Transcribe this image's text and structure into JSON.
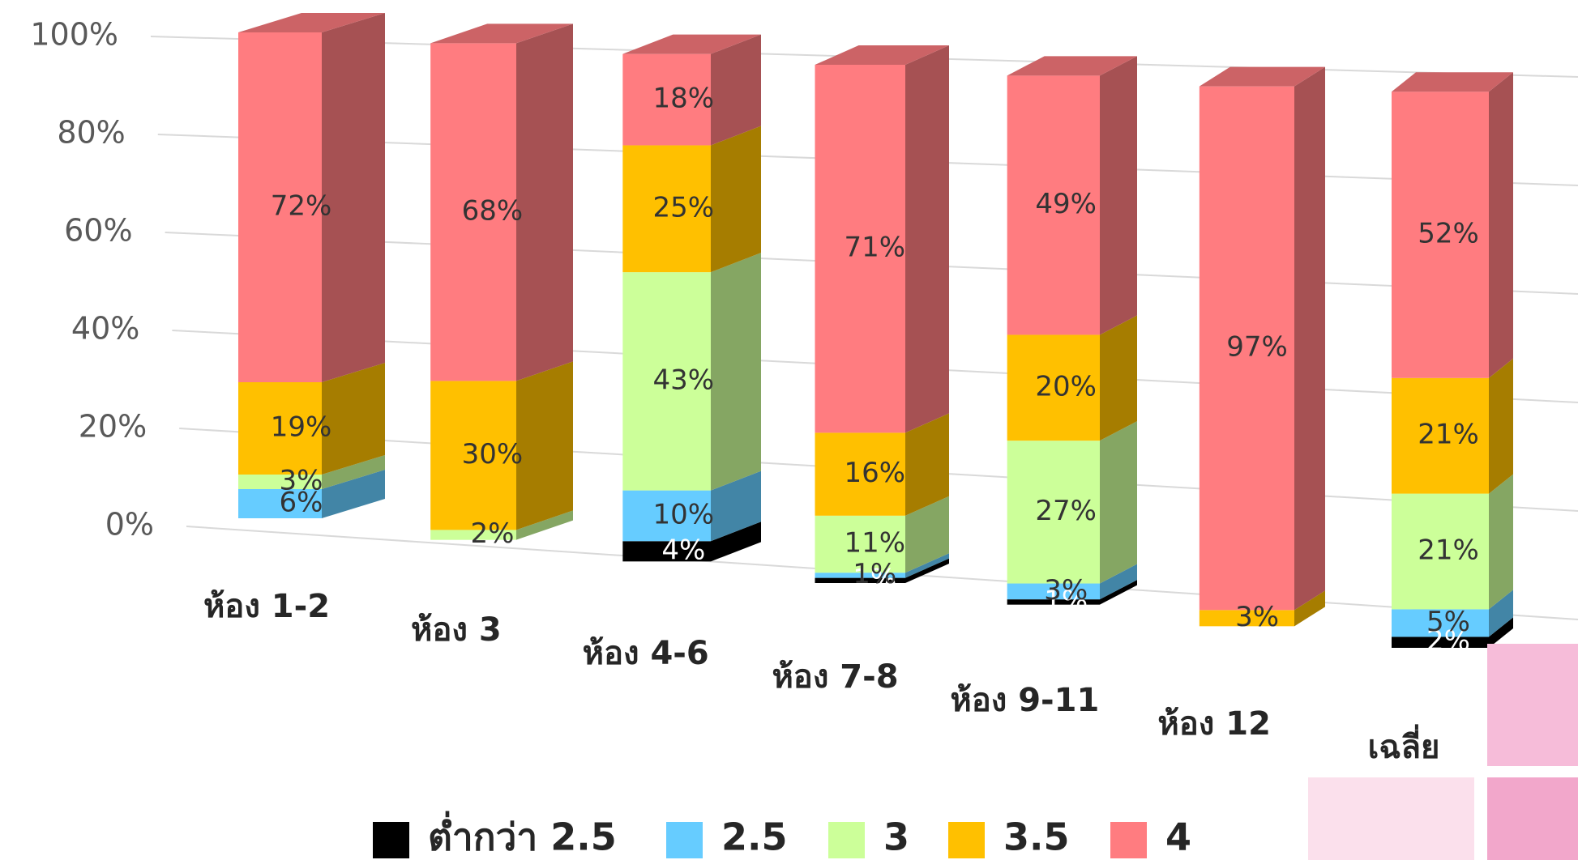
{
  "chart_data": {
    "type": "bar3d_stacked",
    "categories": [
      "ห้อง 1-2",
      "ห้อง 3",
      "ห้อง 4-6",
      "ห้อง 7-8",
      "ห้อง 9-11",
      "ห้อง 12",
      "เฉลี่ย"
    ],
    "series": [
      {
        "name": "ต่ำกว่า 2.5",
        "color": "#000000",
        "values": [
          0,
          0,
          4,
          1,
          1,
          0,
          2
        ],
        "value_labels": [
          null,
          null,
          "4%",
          "1%",
          "1%",
          null,
          "2%"
        ]
      },
      {
        "name": "2.5",
        "color": "#66ccff",
        "values": [
          6,
          0,
          10,
          1,
          3,
          0,
          5
        ],
        "value_labels": [
          "6%",
          null,
          "10%",
          "1%",
          "3%",
          null,
          "5%"
        ]
      },
      {
        "name": "3",
        "color": "#ccff99",
        "values": [
          3,
          2,
          43,
          11,
          27,
          0,
          21
        ],
        "value_labels": [
          "3%",
          "2%",
          "43%",
          "11%",
          "27%",
          null,
          "21%"
        ]
      },
      {
        "name": "3.5",
        "color": "#ffc000",
        "values": [
          19,
          30,
          25,
          16,
          20,
          3,
          21
        ],
        "value_labels": [
          "19%",
          "30%",
          "25%",
          "16%",
          "20%",
          "3%",
          "21%"
        ]
      },
      {
        "name": "4",
        "color": "#ff7c80",
        "values": [
          72,
          68,
          18,
          71,
          49,
          97,
          52
        ],
        "value_labels": [
          "72%",
          "68%",
          "18%",
          "71%",
          "49%",
          "97%",
          "52%"
        ]
      }
    ],
    "ylim": [
      0,
      100
    ],
    "yticks": [
      {
        "value": 0,
        "label": "0%"
      },
      {
        "value": 20,
        "label": "20%"
      },
      {
        "value": 40,
        "label": "40%"
      },
      {
        "value": 60,
        "label": "60%"
      },
      {
        "value": 80,
        "label": "80%"
      },
      {
        "value": 100,
        "label": "100%"
      }
    ],
    "grid": true,
    "legend": "bottom"
  }
}
